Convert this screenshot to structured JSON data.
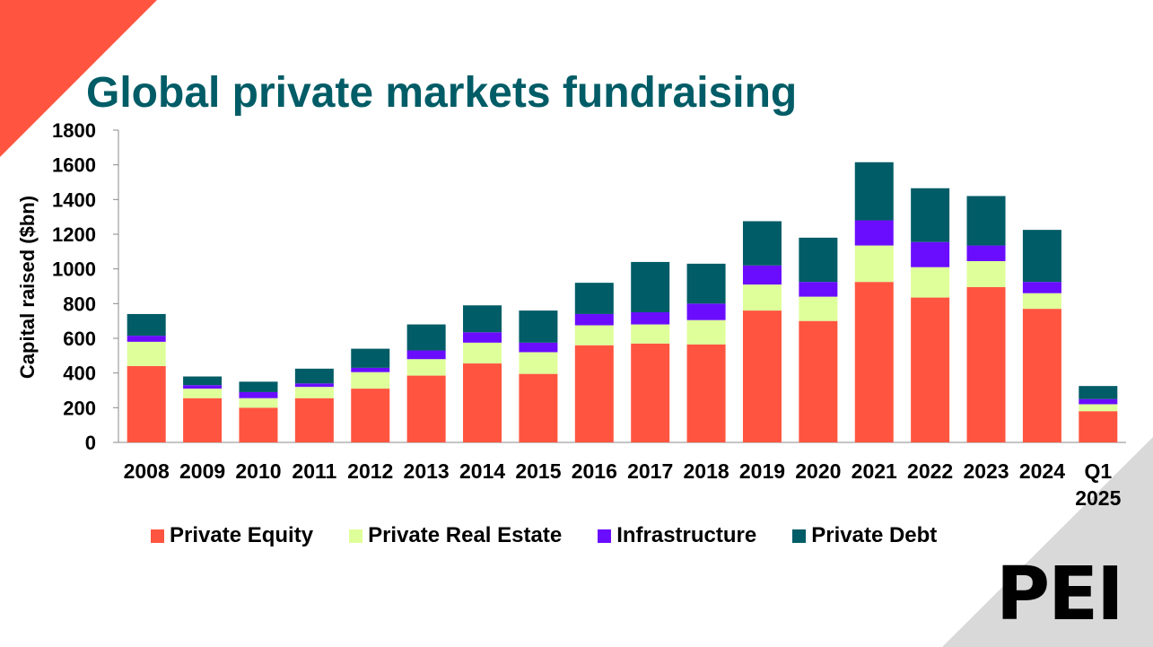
{
  "title": "Global private markets fundraising",
  "brand_logo": "PEI",
  "colors": {
    "title": "#005c66",
    "accent_corner": "#ff5540",
    "grey_corner": "#d9d9d9"
  },
  "chart_data": {
    "type": "bar",
    "stacked": true,
    "title": "Global private markets fundraising",
    "ylabel": "Capital raised ($bn)",
    "xlabel": "",
    "ylim": [
      0,
      1800
    ],
    "yticks": [
      0,
      200,
      400,
      600,
      800,
      1000,
      1200,
      1400,
      1600,
      1800
    ],
    "categories": [
      "2008",
      "2009",
      "2010",
      "2011",
      "2012",
      "2013",
      "2014",
      "2015",
      "2016",
      "2017",
      "2018",
      "2019",
      "2020",
      "2021",
      "2022",
      "2023",
      "2024",
      "Q1 2025"
    ],
    "series": [
      {
        "name": "Private Equity",
        "color": "#ff5540",
        "values": [
          440,
          255,
          200,
          255,
          310,
          385,
          455,
          395,
          560,
          570,
          565,
          760,
          700,
          925,
          835,
          895,
          770,
          180
        ]
      },
      {
        "name": "Private Real Estate",
        "color": "#dfff9a",
        "values": [
          140,
          55,
          55,
          65,
          95,
          95,
          120,
          125,
          115,
          110,
          140,
          150,
          140,
          210,
          175,
          150,
          90,
          40
        ]
      },
      {
        "name": "Infrastructure",
        "color": "#6a0dff",
        "values": [
          35,
          20,
          35,
          20,
          25,
          50,
          60,
          55,
          65,
          70,
          95,
          110,
          85,
          145,
          145,
          90,
          65,
          30
        ]
      },
      {
        "name": "Private Debt",
        "color": "#005c66",
        "values": [
          125,
          50,
          60,
          85,
          110,
          150,
          155,
          185,
          180,
          290,
          230,
          255,
          255,
          335,
          310,
          285,
          300,
          75
        ]
      }
    ],
    "legend_position": "bottom",
    "grid": false
  }
}
